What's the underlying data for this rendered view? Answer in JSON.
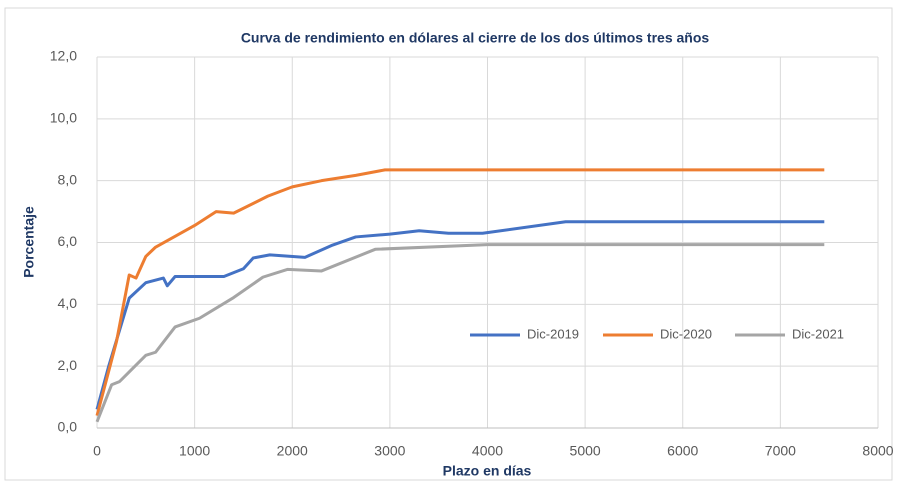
{
  "chart_data": {
    "type": "line",
    "title": "Curva de rendimiento en dólares al cierre de los dos últimos tres años",
    "xlabel": "Plazo en días",
    "ylabel": "Porcentaje",
    "xlim": [
      0,
      8000
    ],
    "xticks": [
      0,
      1000,
      2000,
      3000,
      4000,
      5000,
      6000,
      7000,
      8000
    ],
    "ylim": [
      0,
      12
    ],
    "yticks": [
      {
        "value": 0,
        "label": "0,0"
      },
      {
        "value": 2,
        "label": "2,0"
      },
      {
        "value": 4,
        "label": "4,0"
      },
      {
        "value": 6,
        "label": "6,0"
      },
      {
        "value": 8,
        "label": "8,0"
      },
      {
        "value": 10,
        "label": "10,0"
      },
      {
        "value": 12,
        "label": "12,0"
      }
    ],
    "grid": true,
    "legend": "center",
    "series": [
      {
        "name": "Dic-2019",
        "color": "#4472c4",
        "x": [
          0,
          120,
          330,
          500,
          680,
          720,
          800,
          1000,
          1300,
          1500,
          1600,
          1770,
          2130,
          2400,
          2650,
          3000,
          3300,
          3600,
          3950,
          4800,
          7450
        ],
        "values": [
          0.6,
          2.0,
          4.2,
          4.7,
          4.85,
          4.6,
          4.9,
          4.9,
          4.9,
          5.15,
          5.5,
          5.6,
          5.52,
          5.9,
          6.18,
          6.27,
          6.38,
          6.3,
          6.3,
          6.67,
          6.67
        ]
      },
      {
        "name": "Dic-2020",
        "color": "#ed7d31",
        "x": [
          0,
          200,
          330,
          400,
          500,
          600,
          1000,
          1220,
          1400,
          1750,
          2000,
          2300,
          2650,
          2950,
          7450
        ],
        "values": [
          0.4,
          2.8,
          4.95,
          4.85,
          5.55,
          5.85,
          6.55,
          7.0,
          6.95,
          7.5,
          7.8,
          8.0,
          8.17,
          8.35,
          8.35
        ]
      },
      {
        "name": "Dic-2021",
        "color": "#a5a5a5",
        "x": [
          0,
          150,
          230,
          500,
          600,
          800,
          1050,
          1400,
          1700,
          1950,
          2300,
          2850,
          4000,
          7450
        ],
        "values": [
          0.2,
          1.4,
          1.5,
          2.35,
          2.45,
          3.27,
          3.55,
          4.22,
          4.88,
          5.13,
          5.08,
          5.78,
          5.93,
          5.93
        ]
      }
    ]
  }
}
